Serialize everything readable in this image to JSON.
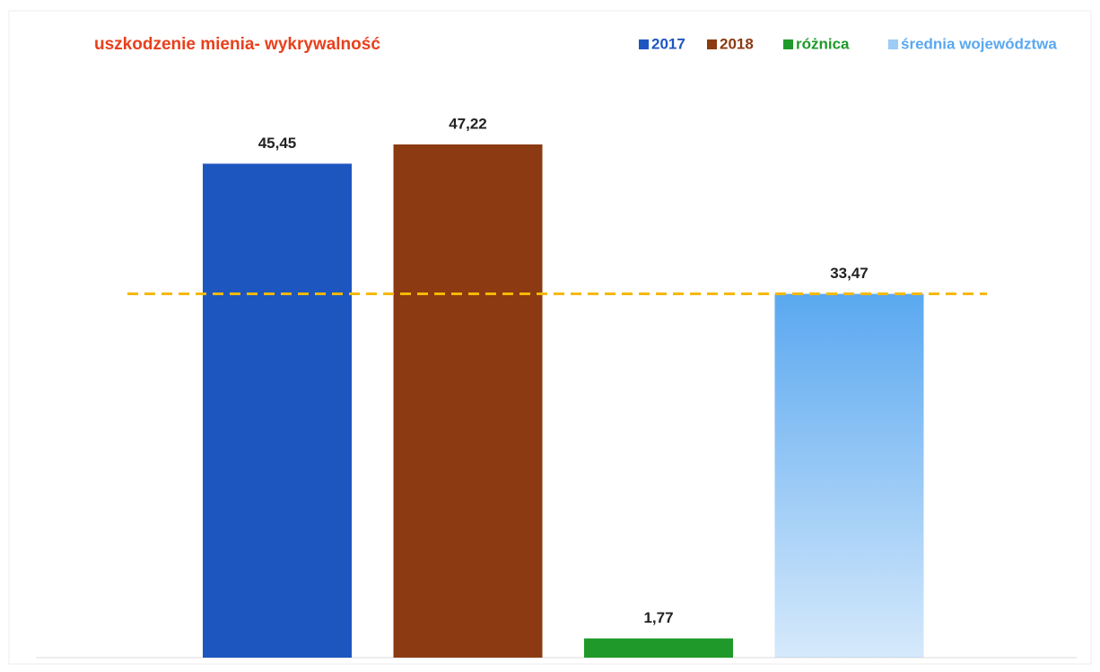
{
  "chart_data": {
    "type": "bar",
    "title": "uszkodzenie mienia- wykrywalność",
    "series": [
      {
        "name": "2017",
        "color": "#1e56c0",
        "values": [
          45.45
        ],
        "value_labels": [
          "45,45"
        ]
      },
      {
        "name": "2018",
        "color": "#8b3a12",
        "values": [
          47.22
        ],
        "value_labels": [
          "47,22"
        ]
      },
      {
        "name": "różnica",
        "color": "#1f9a2a",
        "values": [
          1.77
        ],
        "value_labels": [
          "1,77"
        ]
      },
      {
        "name": "średnia województwa",
        "color": "#5aa8f0",
        "values": [
          33.47
        ],
        "value_labels": [
          "33,47"
        ]
      }
    ],
    "reference_line_color": "#f5b800"
  }
}
